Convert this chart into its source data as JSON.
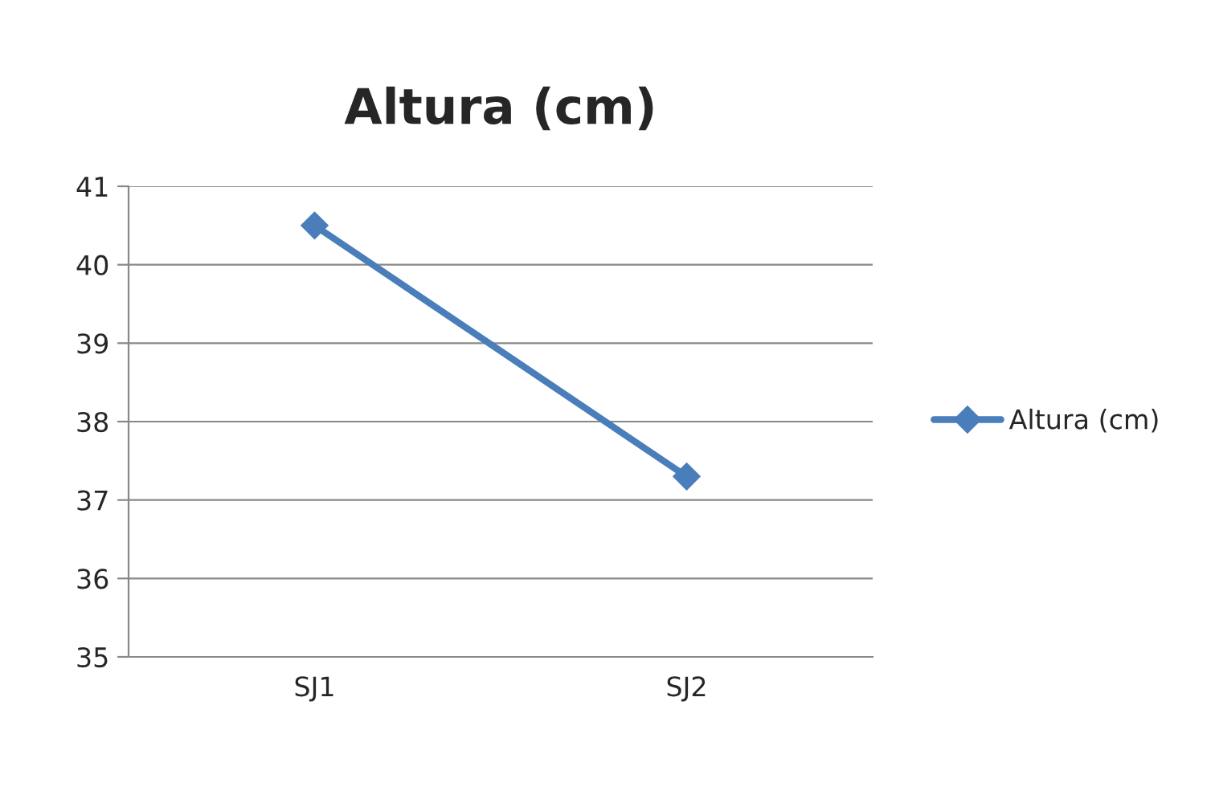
{
  "chart_data": {
    "type": "line",
    "title": "Altura (cm)",
    "categories": [
      "SJ1",
      "SJ2"
    ],
    "series": [
      {
        "name": "Altura (cm)",
        "color": "#4a7ebb",
        "values": [
          40.5,
          37.3
        ]
      }
    ],
    "ylim": [
      35,
      41
    ],
    "yticks": [
      35,
      36,
      37,
      38,
      39,
      40,
      41
    ],
    "grid": "y",
    "legend": "right",
    "marker": "diamond",
    "line_style": "solid"
  }
}
